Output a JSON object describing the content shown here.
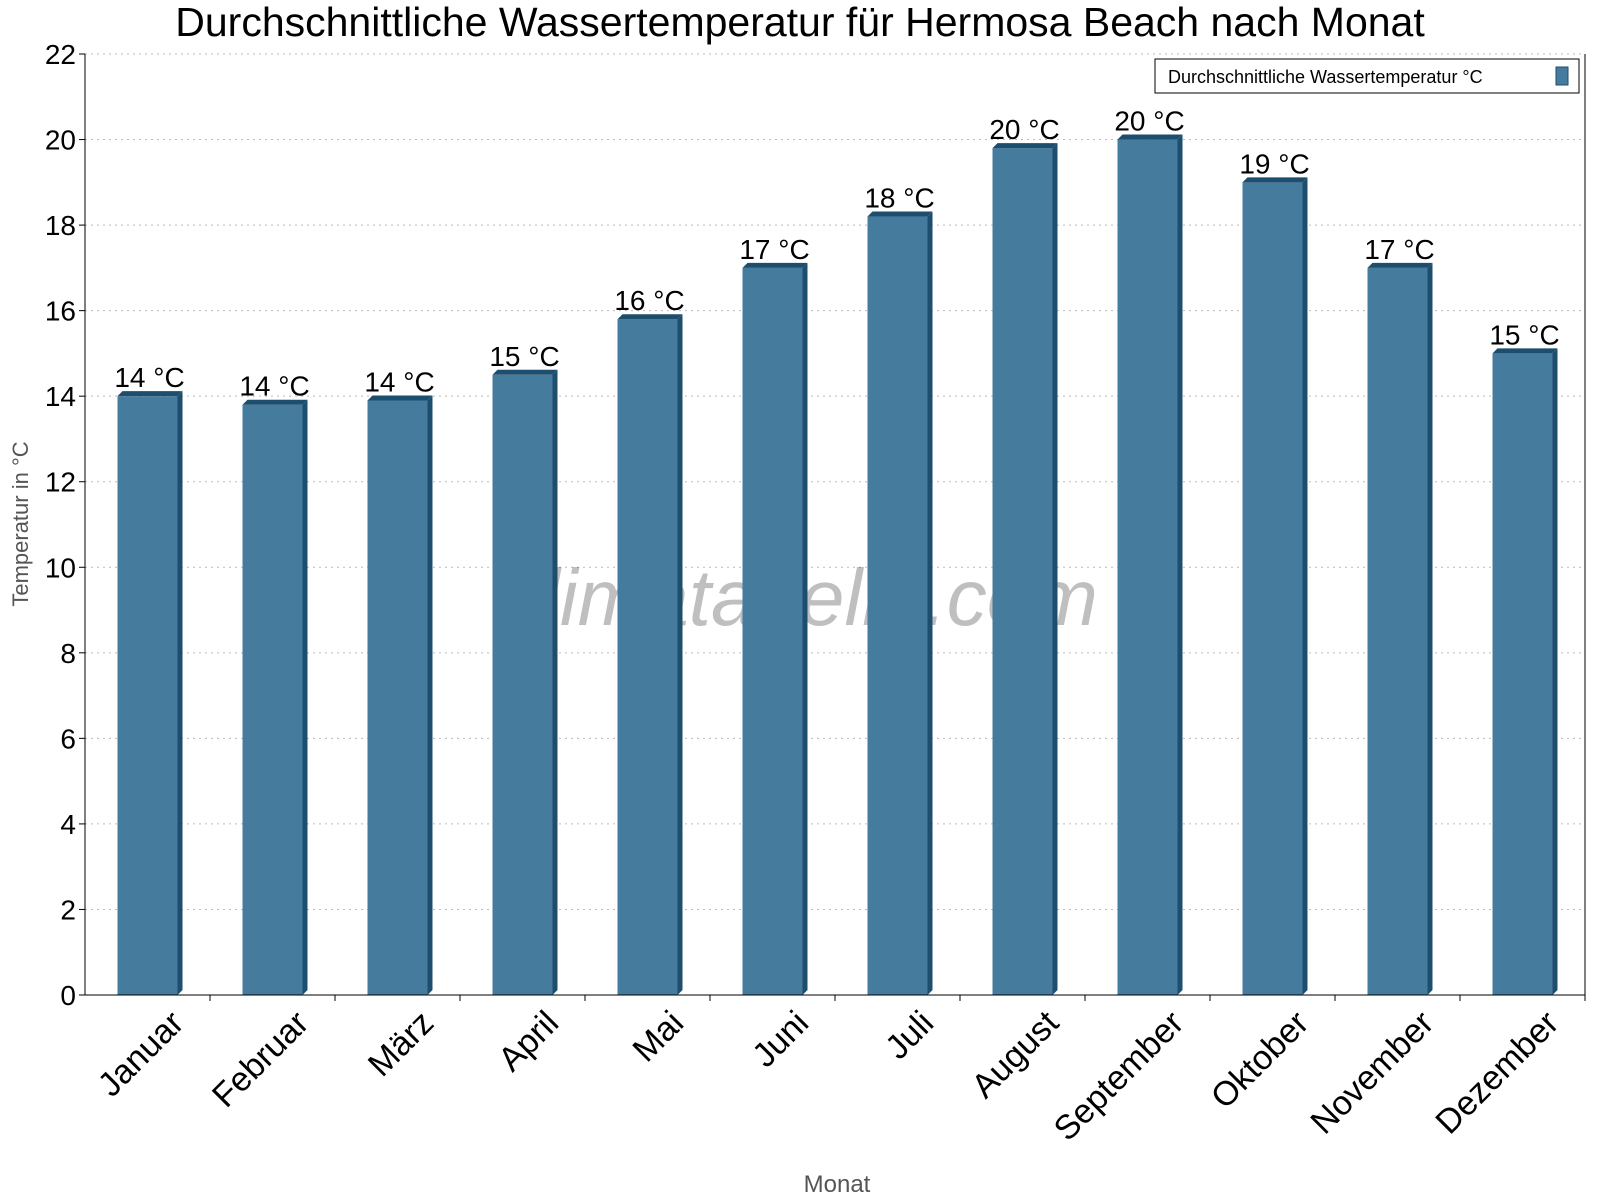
{
  "chart_data": {
    "type": "bar",
    "title": "Durchschnittliche Wassertemperatur für Hermosa Beach nach Monat",
    "xlabel": "Monat",
    "ylabel": "Temperatur in °C",
    "categories": [
      "Januar",
      "Februar",
      "März",
      "April",
      "Mai",
      "Juni",
      "Juli",
      "August",
      "September",
      "Oktober",
      "November",
      "Dezember"
    ],
    "series": [
      {
        "name": "Durchschnittliche Wassertemperatur °C",
        "values": [
          14.0,
          13.8,
          13.9,
          14.5,
          15.8,
          17.0,
          18.2,
          19.8,
          20.0,
          19.0,
          17.0,
          15.0
        ],
        "labels": [
          "14 °C",
          "14 °C",
          "14 °C",
          "15 °C",
          "16 °C",
          "17 °C",
          "18 °C",
          "20 °C",
          "20 °C",
          "19 °C",
          "17 °C",
          "15 °C"
        ],
        "color": "#457b9d",
        "edge_color": "#1d4e6e"
      }
    ],
    "ylim": [
      0,
      22
    ],
    "yticks": [
      0,
      2,
      4,
      6,
      8,
      10,
      12,
      14,
      16,
      18,
      20,
      22
    ],
    "grid": true,
    "legend": "top-right",
    "watermark": "klimatabelle.com"
  }
}
